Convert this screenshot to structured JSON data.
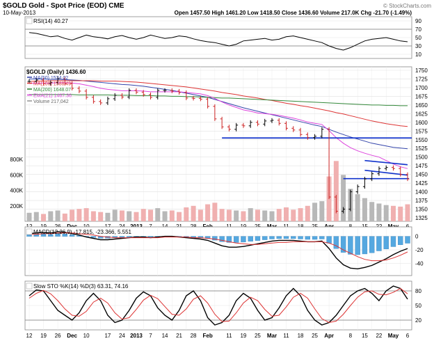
{
  "header": {
    "symbol_title": "$GOLD Gold - Spot Price (EOD) CME",
    "date": "10-May-2013",
    "watermark": "© StockCharts.com",
    "ohlc": "Open 1457.50  High 1461.20  Low 1418.50  Close 1436.60  Volume 217.0K  Chg -21.70 (-1.49%)"
  },
  "colors": {
    "price": "#000000",
    "ma50": "#3344aa",
    "ma100": "#dd3333",
    "ma200": "#33883a",
    "ema21": "#dd44dd",
    "volume_up": "#b8b8b8",
    "volume_down": "#f0b0b0",
    "support": "#1133cc",
    "macd_hist": "#55a8e0",
    "signal": "#dd3333"
  },
  "chart_data": [
    {
      "type": "line",
      "panel": "rsi",
      "title": "RSI(14) 40.27",
      "y_ticks": [
        "90",
        "70",
        "50",
        "30",
        "10"
      ],
      "ylim": [
        0,
        100
      ],
      "reference_lines": [
        70,
        30
      ],
      "values": [
        62,
        60,
        56,
        52,
        54,
        48,
        44,
        50,
        56,
        52,
        50,
        47,
        52,
        55,
        50,
        46,
        50,
        56,
        52,
        48,
        50,
        54,
        52,
        47,
        43,
        40,
        38,
        34,
        30,
        34,
        42,
        44,
        46,
        48,
        44,
        46,
        52,
        54,
        50,
        46,
        42,
        38,
        30,
        24,
        20,
        26,
        34,
        42,
        46,
        48,
        50,
        46,
        42,
        40
      ]
    },
    {
      "type": "line",
      "panel": "price",
      "title": "$GOLD (Daily) 1436.60",
      "legend": [
        "MA(50) 1524.02",
        "MA(100) 1588.49",
        "MA(200) 1648.07",
        "EMA(21) 1467.36",
        "Volume 217,042"
      ],
      "y_ticks": [
        "1750",
        "1725",
        "1700",
        "1675",
        "1650",
        "1625",
        "1600",
        "1575",
        "1550",
        "1525",
        "1500",
        "1475",
        "1450",
        "1425",
        "1400",
        "1375",
        "1350",
        "1325"
      ],
      "volume_ticks": [
        "800K",
        "600K",
        "400K",
        "200K"
      ],
      "ylim": [
        1315,
        1760
      ],
      "x_ticks": [
        "12",
        "19",
        "26",
        "Dec",
        "10",
        "17",
        "24",
        "2013",
        "7",
        "14",
        "21",
        "28",
        "Feb",
        "11",
        "19",
        "25",
        "Mar",
        "11",
        "18",
        "25",
        "Apr",
        "8",
        "15",
        "22",
        "May",
        "6"
      ],
      "series": [
        {
          "name": "$GOLD",
          "values": [
            1718,
            1722,
            1712,
            1715,
            1726,
            1712,
            1698,
            1690,
            1672,
            1660,
            1656,
            1668,
            1678,
            1673,
            1692,
            1687,
            1680,
            1672,
            1692,
            1692,
            1690,
            1686,
            1670,
            1669,
            1667,
            1646,
            1610,
            1587,
            1580,
            1592,
            1590,
            1600,
            1595,
            1604,
            1606,
            1597,
            1583,
            1578,
            1565,
            1556,
            1560,
            1580,
            1385,
            1344,
            1350,
            1400,
            1415,
            1437,
            1452,
            1467,
            1470,
            1467,
            1450,
            1437
          ]
        },
        {
          "name": "MA(50) 1524.02",
          "values": [
            1725,
            1725,
            1725,
            1724,
            1724,
            1723,
            1722,
            1721,
            1719,
            1717,
            1715,
            1713,
            1711,
            1709,
            1708,
            1706,
            1704,
            1701,
            1698,
            1695,
            1692,
            1688,
            1684,
            1680,
            1676,
            1672,
            1666,
            1660,
            1654,
            1648,
            1642,
            1637,
            1632,
            1627,
            1622,
            1617,
            1612,
            1607,
            1602,
            1597,
            1592,
            1588,
            1580,
            1572,
            1565,
            1558,
            1552,
            1546,
            1540,
            1536,
            1532,
            1528,
            1526,
            1524
          ]
        },
        {
          "name": "MA(100) 1588.49",
          "values": [
            1718,
            1719,
            1719,
            1720,
            1720,
            1720,
            1720,
            1720,
            1720,
            1720,
            1719,
            1719,
            1719,
            1718,
            1717,
            1716,
            1714,
            1712,
            1710,
            1708,
            1706,
            1704,
            1702,
            1699,
            1696,
            1693,
            1690,
            1686,
            1683,
            1680,
            1676,
            1673,
            1670,
            1666,
            1663,
            1659,
            1655,
            1652,
            1648,
            1645,
            1641,
            1637,
            1633,
            1628,
            1624,
            1619,
            1614,
            1609,
            1604,
            1600,
            1596,
            1593,
            1590,
            1588
          ]
        },
        {
          "name": "MA(200) 1648.07",
          "values": [
            1680,
            1680,
            1680,
            1680,
            1680,
            1680,
            1680,
            1679,
            1679,
            1679,
            1679,
            1679,
            1678,
            1678,
            1678,
            1677,
            1677,
            1677,
            1676,
            1676,
            1675,
            1675,
            1674,
            1674,
            1673,
            1672,
            1671,
            1670,
            1670,
            1669,
            1668,
            1667,
            1666,
            1665,
            1664,
            1663,
            1662,
            1661,
            1660,
            1659,
            1658,
            1657,
            1656,
            1655,
            1654,
            1653,
            1652,
            1651,
            1650,
            1650,
            1649,
            1649,
            1648,
            1648
          ]
        },
        {
          "name": "EMA(21) 1467.36",
          "values": [
            1712,
            1713,
            1713,
            1713,
            1714,
            1714,
            1713,
            1711,
            1707,
            1703,
            1698,
            1695,
            1693,
            1691,
            1691,
            1691,
            1690,
            1688,
            1688,
            1688,
            1688,
            1688,
            1686,
            1684,
            1682,
            1677,
            1669,
            1659,
            1650,
            1643,
            1636,
            1632,
            1627,
            1625,
            1623,
            1620,
            1616,
            1612,
            1607,
            1601,
            1597,
            1594,
            1576,
            1556,
            1540,
            1527,
            1518,
            1511,
            1505,
            1500,
            1490,
            1480,
            1472,
            1467
          ]
        }
      ],
      "volume": [
        110,
        120,
        95,
        130,
        140,
        100,
        150,
        160,
        170,
        130,
        120,
        110,
        150,
        140,
        130,
        120,
        160,
        150,
        170,
        130,
        140,
        120,
        180,
        200,
        150,
        220,
        240,
        160,
        150,
        140,
        130,
        170,
        150,
        140,
        130,
        160,
        180,
        150,
        170,
        200,
        240,
        260,
        580,
        780,
        600,
        420,
        350,
        300,
        250,
        230,
        210,
        200,
        190,
        220
      ],
      "support_lines": [
        1555,
        1438
      ],
      "channel_upper": [
        [
          1490,
          1478
        ]
      ],
      "channel_lower": [
        [
          1462,
          1448
        ]
      ]
    },
    {
      "type": "line",
      "panel": "macd",
      "title": "MACD(12,26,9) -17.815, -23.366, 5.551",
      "y_ticks": [
        "0",
        "-20",
        "-40"
      ],
      "ylim": [
        -58,
        14
      ],
      "series": [
        {
          "name": "-17.815",
          "values": [
            4,
            5,
            6,
            5,
            7,
            6,
            4,
            2,
            -1,
            -3,
            -5,
            -5,
            -4,
            -3,
            -2,
            -1,
            -1,
            -2,
            -1,
            0,
            0,
            -1,
            -2,
            -3,
            -4,
            -6,
            -10,
            -14,
            -16,
            -16,
            -15,
            -13,
            -11,
            -9,
            -7,
            -6,
            -6,
            -6,
            -7,
            -8,
            -8,
            -7,
            -18,
            -32,
            -42,
            -47,
            -48,
            -46,
            -43,
            -38,
            -33,
            -27,
            -22,
            -18
          ]
        },
        {
          "name": "-23.366",
          "values": [
            3,
            3,
            4,
            4,
            5,
            5,
            5,
            4,
            3,
            2,
            0,
            -1,
            -2,
            -2,
            -2,
            -2,
            -2,
            -2,
            -2,
            -1,
            -1,
            -1,
            -1,
            -2,
            -2,
            -3,
            -4,
            -6,
            -8,
            -10,
            -11,
            -12,
            -12,
            -11,
            -10,
            -9,
            -9,
            -8,
            -8,
            -8,
            -8,
            -8,
            -10,
            -14,
            -20,
            -25,
            -30,
            -34,
            -36,
            -36,
            -35,
            -32,
            -28,
            -23
          ]
        }
      ],
      "histogram_label": "5.551"
    },
    {
      "type": "line",
      "panel": "stochastic",
      "title": "Slow STO %K(14) %D(3) 63.31, 74.16",
      "y_ticks": [
        "80",
        "50",
        "20"
      ],
      "ylim": [
        0,
        100
      ],
      "series": [
        {
          "name": "63.31",
          "values": [
            70,
            82,
            80,
            60,
            40,
            30,
            20,
            35,
            60,
            75,
            60,
            30,
            15,
            20,
            40,
            65,
            78,
            70,
            45,
            30,
            20,
            40,
            70,
            80,
            60,
            25,
            10,
            15,
            30,
            60,
            75,
            65,
            40,
            20,
            25,
            45,
            70,
            85,
            70,
            40,
            20,
            10,
            15,
            30,
            50,
            70,
            80,
            85,
            75,
            60,
            80,
            90,
            85,
            63
          ]
        },
        {
          "name": "74.16",
          "values": [
            65,
            75,
            81,
            74,
            60,
            43,
            30,
            28,
            38,
            57,
            65,
            55,
            35,
            22,
            25,
            42,
            61,
            71,
            64,
            48,
            32,
            30,
            43,
            63,
            70,
            55,
            32,
            17,
            18,
            35,
            55,
            67,
            60,
            42,
            28,
            30,
            47,
            67,
            75,
            65,
            43,
            23,
            15,
            18,
            32,
            50,
            67,
            78,
            80,
            73,
            72,
            77,
            85,
            74
          ]
        }
      ]
    }
  ]
}
